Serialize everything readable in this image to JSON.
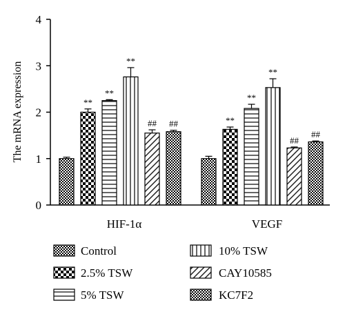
{
  "chart_data": {
    "type": "bar",
    "ylabel": "The mRNA expression",
    "ylim": [
      0,
      4
    ],
    "yticks": [
      "0",
      "1",
      "2",
      "3",
      "4"
    ],
    "categories": [
      "HIF-1α",
      "VEGF"
    ],
    "legend_position": "bottom",
    "series": [
      {
        "name": "Control",
        "pattern": "checker-fine",
        "values": [
          1.0,
          1.0
        ],
        "errors": [
          0.03,
          0.05
        ],
        "significance": [
          "",
          ""
        ]
      },
      {
        "name": "2.5% TSW",
        "pattern": "checker-coarse",
        "values": [
          2.0,
          1.63
        ],
        "errors": [
          0.07,
          0.05
        ],
        "significance": [
          "**",
          "**"
        ]
      },
      {
        "name": "5% TSW",
        "pattern": "horizontal",
        "values": [
          2.25,
          2.08
        ],
        "errors": [
          0.02,
          0.09
        ],
        "significance": [
          "**",
          "**"
        ]
      },
      {
        "name": "10% TSW",
        "pattern": "vertical",
        "values": [
          2.76,
          2.53
        ],
        "errors": [
          0.2,
          0.19
        ],
        "significance": [
          "**",
          "**"
        ]
      },
      {
        "name": "CAY10585",
        "pattern": "diagonal",
        "values": [
          1.55,
          1.23
        ],
        "errors": [
          0.07,
          0.02
        ],
        "significance": [
          "##",
          "##"
        ]
      },
      {
        "name": "KC7F2",
        "pattern": "checker-fine",
        "values": [
          1.58,
          1.36
        ],
        "errors": [
          0.03,
          0.02
        ],
        "significance": [
          "##",
          "##"
        ]
      }
    ]
  }
}
